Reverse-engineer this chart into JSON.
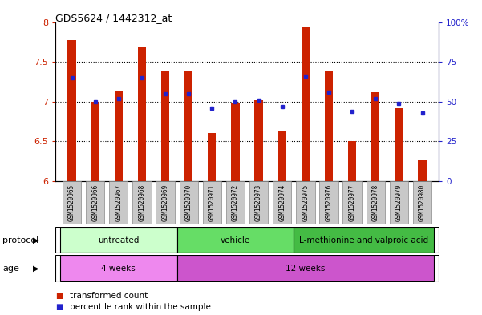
{
  "title": "GDS5624 / 1442312_at",
  "samples": [
    "GSM1520965",
    "GSM1520966",
    "GSM1520967",
    "GSM1520968",
    "GSM1520969",
    "GSM1520970",
    "GSM1520971",
    "GSM1520972",
    "GSM1520973",
    "GSM1520974",
    "GSM1520975",
    "GSM1520976",
    "GSM1520977",
    "GSM1520978",
    "GSM1520979",
    "GSM1520980"
  ],
  "transformed_counts": [
    7.77,
    7.0,
    7.13,
    7.68,
    7.38,
    7.38,
    6.6,
    6.98,
    7.02,
    6.63,
    7.93,
    7.38,
    6.5,
    7.12,
    6.92,
    6.27
  ],
  "percentile_ranks": [
    65,
    50,
    52,
    65,
    55,
    55,
    46,
    50,
    51,
    47,
    66,
    56,
    44,
    52,
    49,
    43
  ],
  "ylim_left": [
    6.0,
    8.0
  ],
  "ylim_right": [
    0,
    100
  ],
  "yticks_left": [
    6.0,
    6.5,
    7.0,
    7.5,
    8.0
  ],
  "yticks_right": [
    0,
    25,
    50,
    75,
    100
  ],
  "ytick_labels_right": [
    "0",
    "25",
    "50",
    "75",
    "100%"
  ],
  "bar_color": "#cc2200",
  "dot_color": "#2222cc",
  "bar_bottom": 6.0,
  "protocol_groups_colors": [
    "#ccffcc",
    "#66dd66",
    "#44bb44"
  ],
  "protocol_groups_labels": [
    "untreated",
    "vehicle",
    "L-methionine and valproic acid"
  ],
  "protocol_groups_ranges": [
    [
      0,
      5
    ],
    [
      5,
      10
    ],
    [
      10,
      16
    ]
  ],
  "age_groups_colors": [
    "#ee88ee",
    "#cc55cc"
  ],
  "age_groups_labels": [
    "4 weeks",
    "12 weeks"
  ],
  "age_groups_ranges": [
    [
      0,
      5
    ],
    [
      5,
      16
    ]
  ],
  "tick_bg_color": "#c8c8c8",
  "legend_red_label": "transformed count",
  "legend_blue_label": "percentile rank within the sample",
  "protocol_label": "protocol",
  "age_label": "age"
}
